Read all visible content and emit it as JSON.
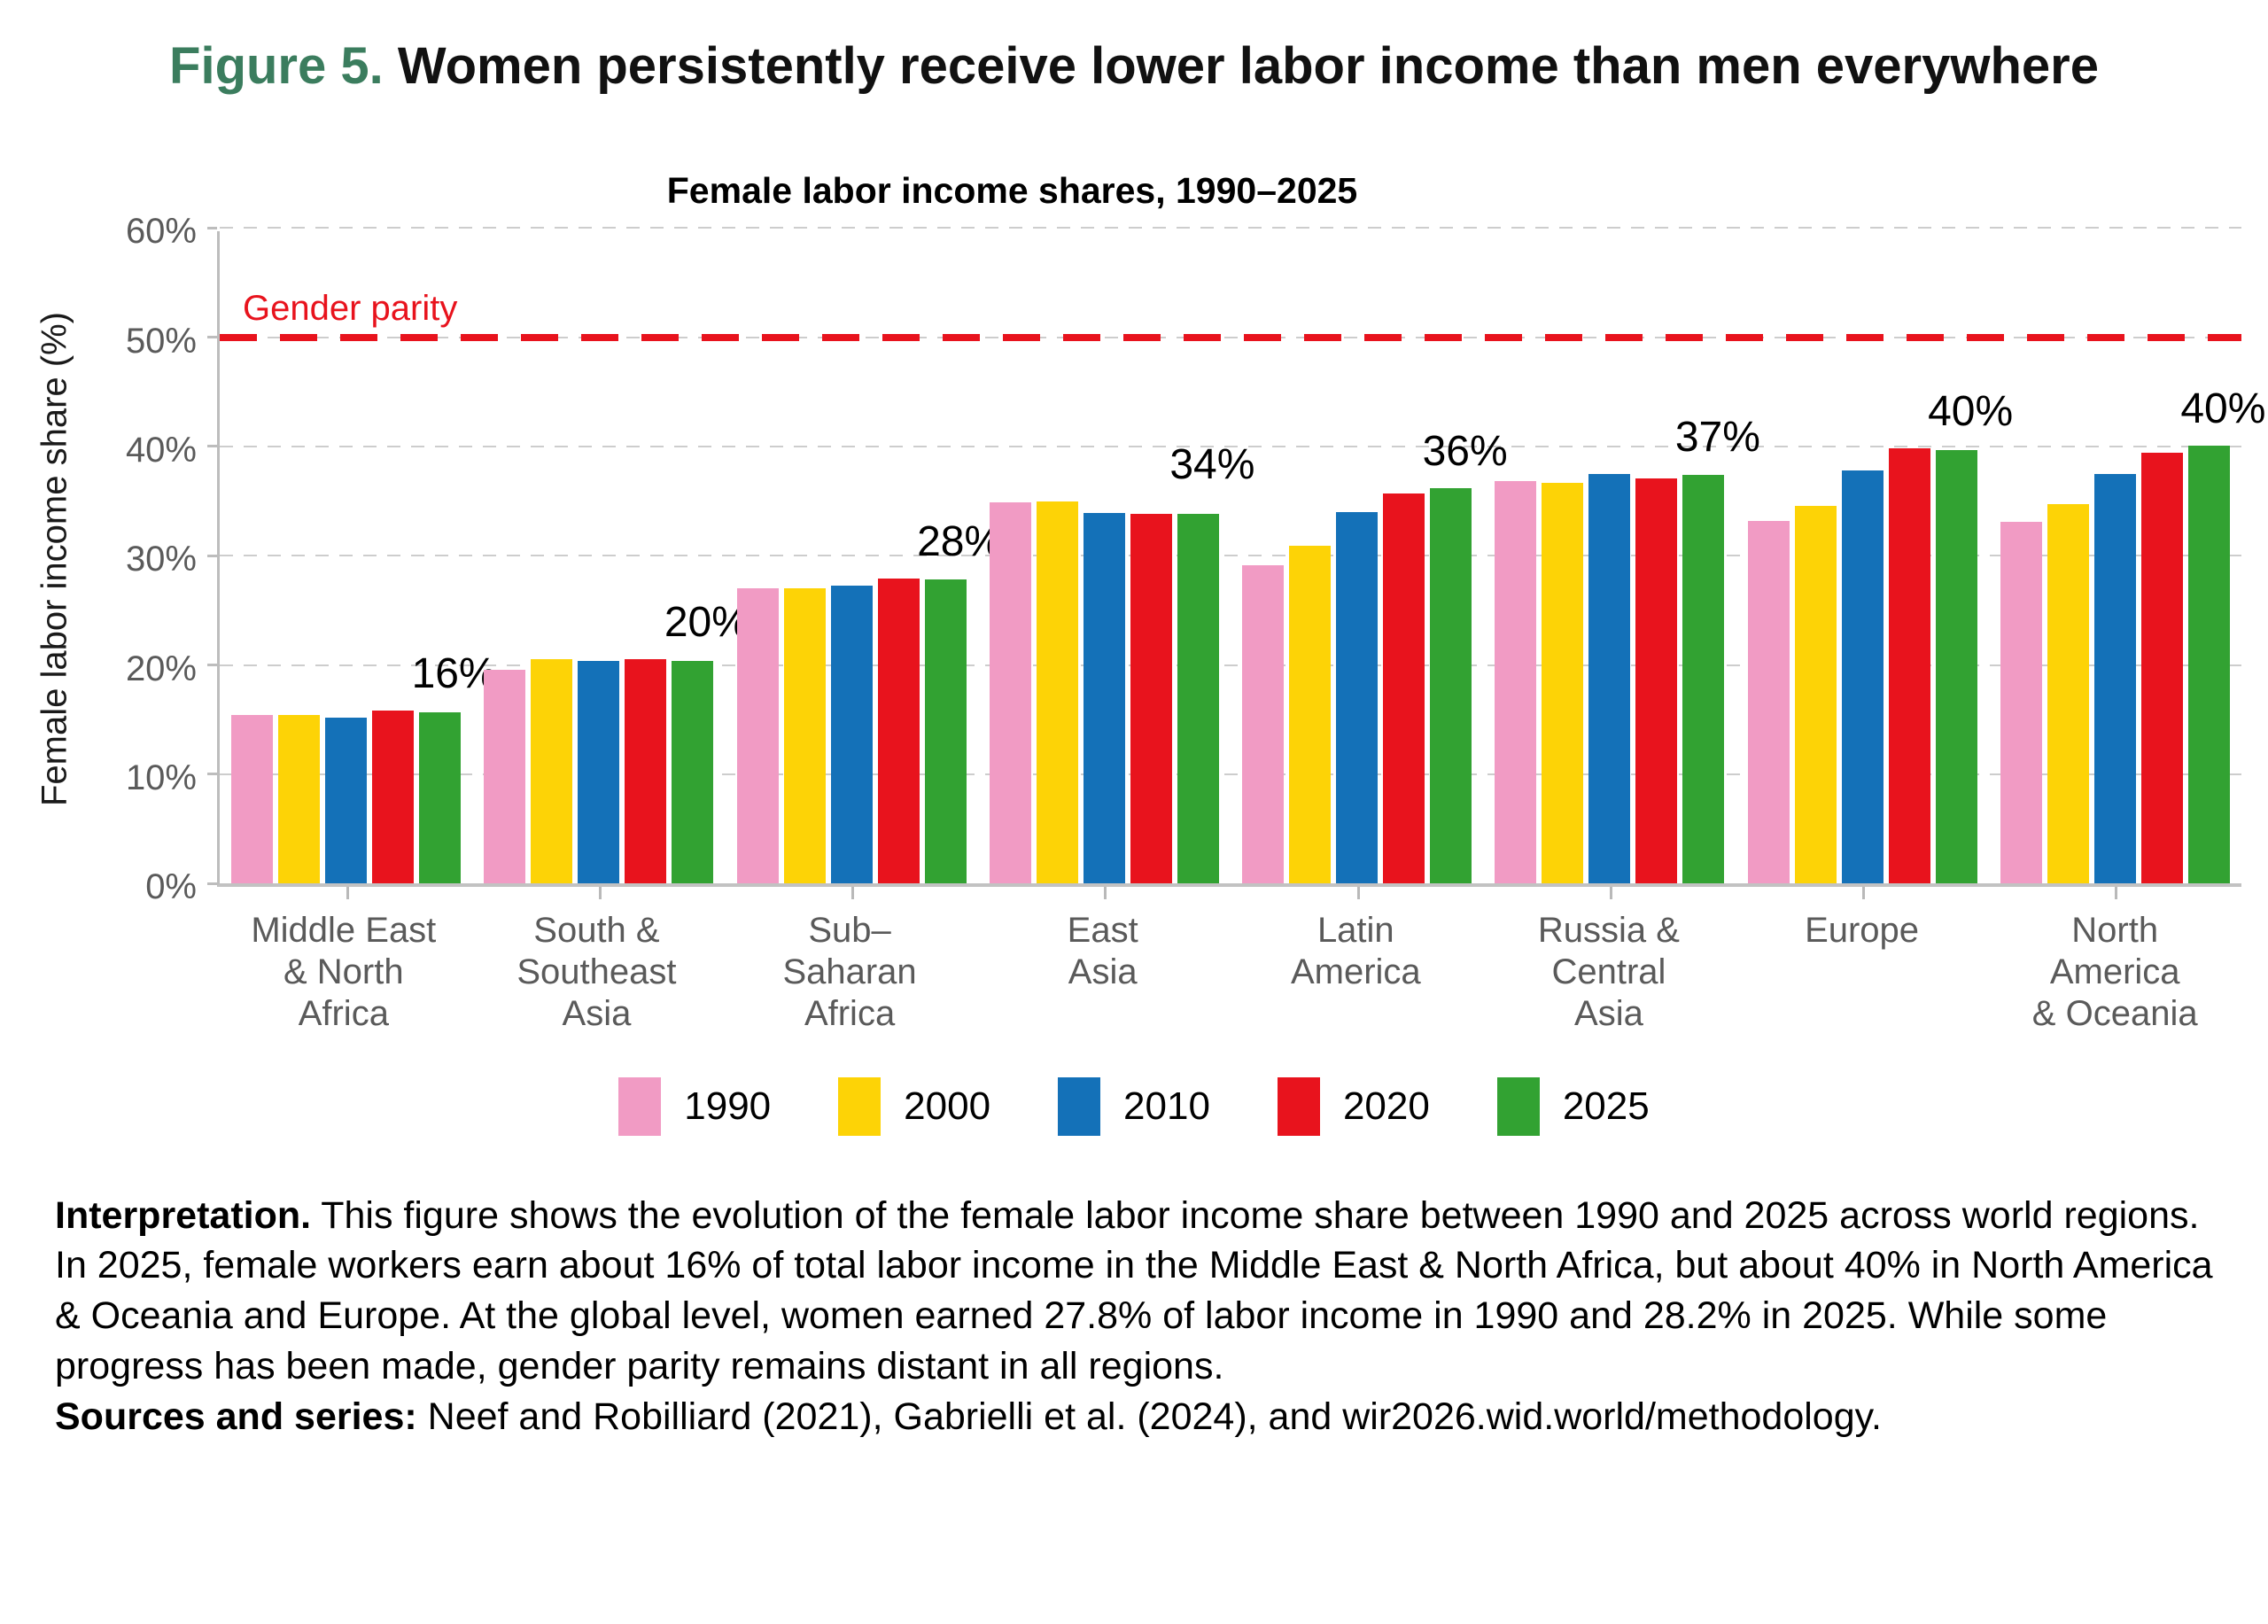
{
  "figure_title": {
    "prefix": "Figure 5.",
    "text": "Women persistently receive lower labor income than men everywhere"
  },
  "chart_data": {
    "type": "bar",
    "title": "Female labor income shares, 1990–2025",
    "ylabel": "Female labor income share (%)",
    "ylim": [
      0,
      60
    ],
    "yticks": [
      0,
      10,
      20,
      30,
      40,
      50,
      60
    ],
    "grid": "dashed horizontal gridlines every 10%",
    "legend_position": "bottom",
    "parity_line": {
      "value": 50,
      "label": "Gender parity",
      "color": "#e8131d"
    },
    "categories": [
      "Middle East & North Africa",
      "South & Southeast Asia",
      "Sub–Saharan Africa",
      "East Asia",
      "Latin America",
      "Russia & Central Asia",
      "Europe",
      "North America & Oceania"
    ],
    "category_lines": [
      [
        "Middle East",
        "& North",
        "Africa"
      ],
      [
        "South &",
        "Southeast",
        "Asia"
      ],
      [
        "Sub–",
        "Saharan",
        "Africa"
      ],
      [
        "East",
        "Asia"
      ],
      [
        "Latin",
        "America"
      ],
      [
        "Russia &",
        "Central",
        "Asia"
      ],
      [
        "Europe"
      ],
      [
        "North",
        "America",
        "& Oceania"
      ]
    ],
    "series": [
      {
        "name": "1990",
        "color": "#f19bc4",
        "values": [
          15.4,
          19.6,
          27.0,
          34.9,
          29.1,
          36.8,
          33.2,
          33.1
        ]
      },
      {
        "name": "2000",
        "color": "#fdd306",
        "values": [
          15.4,
          20.5,
          27.0,
          35.0,
          30.9,
          36.7,
          34.6,
          34.7
        ]
      },
      {
        "name": "2010",
        "color": "#1471b8",
        "values": [
          15.2,
          20.4,
          27.3,
          33.9,
          34.0,
          37.5,
          37.8,
          37.5
        ]
      },
      {
        "name": "2020",
        "color": "#e8131d",
        "values": [
          15.8,
          20.5,
          27.9,
          33.8,
          35.7,
          37.1,
          39.8,
          39.4
        ]
      },
      {
        "name": "2025",
        "color": "#32a232",
        "values": [
          15.7,
          20.4,
          27.8,
          33.8,
          36.2,
          37.4,
          39.7,
          40.1
        ]
      }
    ],
    "annotations": [
      "16%",
      "20%",
      "28%",
      "34%",
      "36%",
      "37%",
      "40%",
      "40%"
    ]
  },
  "footer": {
    "interpretation_label": "Interpretation.",
    "interpretation_text": " This figure shows the evolution of the female labor income share between 1990 and 2025 across world regions. In 2025, female workers earn about 16% of total labor income in the Middle East & North Africa, but about 40% in North America & Oceania and Europe. At the global level, women earned 27.8% of labor income in 1990 and 28.2% in 2025. While some progress has been made, gender parity remains distant in all regions.",
    "sources_label": "Sources and series:",
    "sources_text": " Neef and Robilliard (2021), Gabrielli et al. (2024), and wir2026.wid.world/methodology."
  }
}
